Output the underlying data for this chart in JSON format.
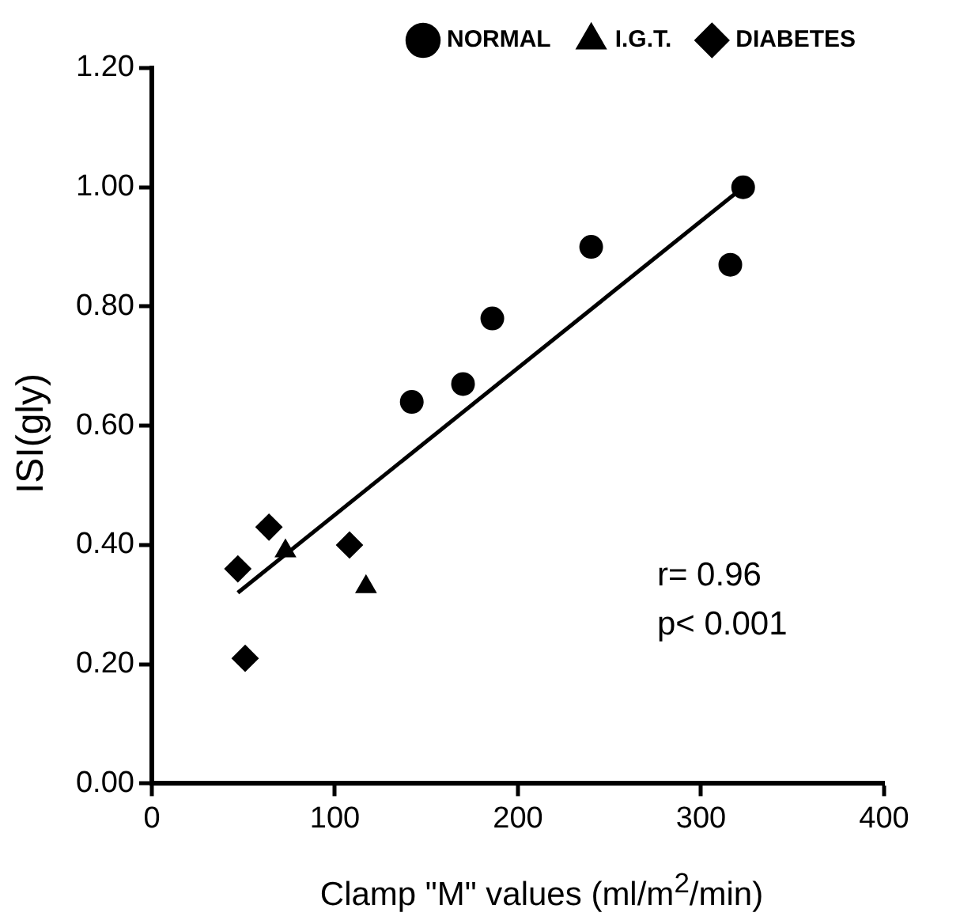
{
  "chart_data": {
    "type": "scatter",
    "xlabel": "Clamp \"M\" values (ml/m$^{2}$/min)",
    "ylabel": "ISI(gly)",
    "xlim": [
      0,
      400
    ],
    "xticks": [
      0,
      100,
      200,
      300,
      400
    ],
    "ylim": [
      0,
      1.2
    ],
    "yticks": [
      {
        "value": 0,
        "label": "0.00"
      },
      {
        "value": 0.2,
        "label": "0.20"
      },
      {
        "value": 0.4,
        "label": "0.40"
      },
      {
        "value": 0.6,
        "label": "0.60"
      },
      {
        "value": 0.8,
        "label": "0.80"
      },
      {
        "value": 1.0,
        "label": "1.00"
      },
      {
        "value": 1.2,
        "label": "1.20"
      }
    ],
    "grid": false,
    "legend": "top right",
    "series": [
      {
        "name": "NORMAL",
        "color": "#000000",
        "marker": "circle",
        "x": [
          142,
          170,
          186,
          240,
          316,
          323
        ],
        "values": [
          0.64,
          0.67,
          0.78,
          0.9,
          0.87,
          1.0
        ]
      },
      {
        "name": "I.G.T.",
        "color": "#000000",
        "marker": "triangle",
        "x": [
          73,
          117
        ],
        "values": [
          0.39,
          0.33
        ]
      },
      {
        "name": "DIABETES",
        "color": "#000000",
        "marker": "diamond",
        "x": [
          47,
          64,
          108,
          51
        ],
        "values": [
          0.36,
          0.43,
          0.4,
          0.21
        ]
      },
      {
        "type": "line",
        "color": "#000000",
        "marker": "none",
        "line_style": "solid",
        "x": [
          47,
          323
        ],
        "values": [
          0.32,
          1.0
        ]
      }
    ],
    "annotations": [
      "r= 0.96",
      "p< 0.001"
    ]
  }
}
